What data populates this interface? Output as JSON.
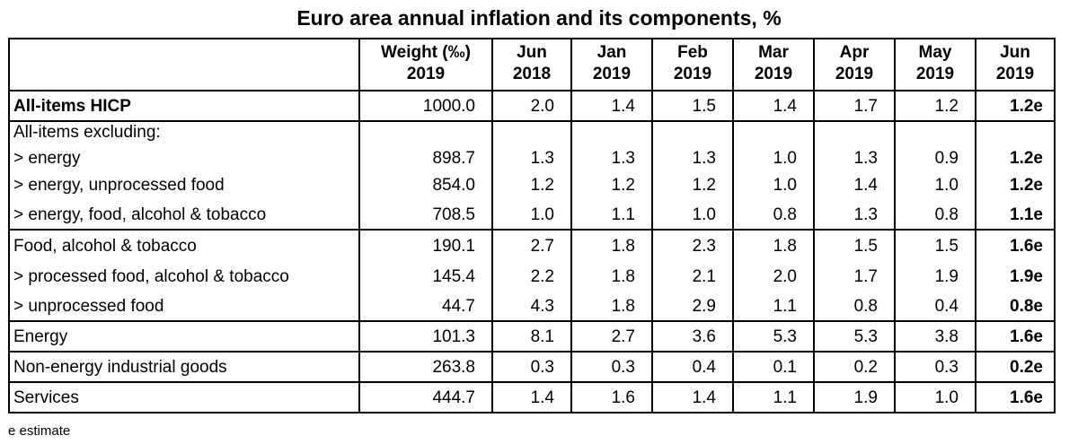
{
  "title": "Euro area annual inflation and its components, %",
  "columns": [
    {
      "line1": "",
      "line2": ""
    },
    {
      "line1": "Weight (‰)",
      "line2": "2019"
    },
    {
      "line1": "Jun",
      "line2": "2018"
    },
    {
      "line1": "Jan",
      "line2": "2019"
    },
    {
      "line1": "Feb",
      "line2": "2019"
    },
    {
      "line1": "Mar",
      "line2": "2019"
    },
    {
      "line1": "Apr",
      "line2": "2019"
    },
    {
      "line1": "May",
      "line2": "2019"
    },
    {
      "line1": "Jun",
      "line2": "2019"
    }
  ],
  "excluding_label": "All-items excluding:",
  "rows": [
    {
      "label": "All-items HICP",
      "weight": "1000.0",
      "jun2018": "2.0",
      "jan2019": "1.4",
      "feb2019": "1.5",
      "mar2019": "1.4",
      "apr2019": "1.7",
      "may2019": "1.2",
      "jun2019": "1.2e"
    },
    {
      "label": "> energy",
      "weight": "898.7",
      "jun2018": "1.3",
      "jan2019": "1.3",
      "feb2019": "1.3",
      "mar2019": "1.0",
      "apr2019": "1.3",
      "may2019": "0.9",
      "jun2019": "1.2e"
    },
    {
      "label": "> energy, unprocessed food",
      "weight": "854.0",
      "jun2018": "1.2",
      "jan2019": "1.2",
      "feb2019": "1.2",
      "mar2019": "1.0",
      "apr2019": "1.4",
      "may2019": "1.0",
      "jun2019": "1.2e"
    },
    {
      "label": "> energy, food, alcohol & tobacco",
      "weight": "708.5",
      "jun2018": "1.0",
      "jan2019": "1.1",
      "feb2019": "1.0",
      "mar2019": "0.8",
      "apr2019": "1.3",
      "may2019": "0.8",
      "jun2019": "1.1e"
    },
    {
      "label": "Food, alcohol & tobacco",
      "weight": "190.1",
      "jun2018": "2.7",
      "jan2019": "1.8",
      "feb2019": "2.3",
      "mar2019": "1.8",
      "apr2019": "1.5",
      "may2019": "1.5",
      "jun2019": "1.6e"
    },
    {
      "label": "> processed food, alcohol & tobacco",
      "weight": "145.4",
      "jun2018": "2.2",
      "jan2019": "1.8",
      "feb2019": "2.1",
      "mar2019": "2.0",
      "apr2019": "1.7",
      "may2019": "1.9",
      "jun2019": "1.9e"
    },
    {
      "label": "> unprocessed food",
      "weight": "44.7",
      "jun2018": "4.3",
      "jan2019": "1.8",
      "feb2019": "2.9",
      "mar2019": "1.1",
      "apr2019": "0.8",
      "may2019": "0.4",
      "jun2019": "0.8e"
    },
    {
      "label": "Energy",
      "weight": "101.3",
      "jun2018": "8.1",
      "jan2019": "2.7",
      "feb2019": "3.6",
      "mar2019": "5.3",
      "apr2019": "5.3",
      "may2019": "3.8",
      "jun2019": "1.6e"
    },
    {
      "label": "Non-energy industrial goods",
      "weight": "263.8",
      "jun2018": "0.3",
      "jan2019": "0.3",
      "feb2019": "0.4",
      "mar2019": "0.1",
      "apr2019": "0.2",
      "may2019": "0.3",
      "jun2019": "0.2e"
    },
    {
      "label": "Services",
      "weight": "444.7",
      "jun2018": "1.4",
      "jan2019": "1.6",
      "feb2019": "1.4",
      "mar2019": "1.1",
      "apr2019": "1.9",
      "may2019": "1.0",
      "jun2019": "1.6e"
    }
  ],
  "footnote": "e estimate",
  "chart_data": {
    "type": "table",
    "title": "Euro area annual inflation and its components, %",
    "columns": [
      "",
      "Weight (‰) 2019",
      "Jun 2018",
      "Jan 2019",
      "Feb 2019",
      "Mar 2019",
      "Apr 2019",
      "May 2019",
      "Jun 2019"
    ],
    "rows": [
      [
        "All-items HICP",
        1000.0,
        2.0,
        1.4,
        1.5,
        1.4,
        1.7,
        1.2,
        1.2
      ],
      [
        "> energy",
        898.7,
        1.3,
        1.3,
        1.3,
        1.0,
        1.3,
        0.9,
        1.2
      ],
      [
        "> energy, unprocessed food",
        854.0,
        1.2,
        1.2,
        1.2,
        1.0,
        1.4,
        1.0,
        1.2
      ],
      [
        "> energy, food, alcohol & tobacco",
        708.5,
        1.0,
        1.1,
        1.0,
        0.8,
        1.3,
        0.8,
        1.1
      ],
      [
        "Food, alcohol & tobacco",
        190.1,
        2.7,
        1.8,
        2.3,
        1.8,
        1.5,
        1.5,
        1.6
      ],
      [
        "> processed food, alcohol & tobacco",
        145.4,
        2.2,
        1.8,
        2.1,
        2.0,
        1.7,
        1.9,
        1.9
      ],
      [
        "> unprocessed food",
        44.7,
        4.3,
        1.8,
        2.9,
        1.1,
        0.8,
        0.4,
        0.8
      ],
      [
        "Energy",
        101.3,
        8.1,
        2.7,
        3.6,
        5.3,
        5.3,
        3.8,
        1.6
      ],
      [
        "Non-energy industrial goods",
        263.8,
        0.3,
        0.3,
        0.4,
        0.1,
        0.2,
        0.3,
        0.2
      ],
      [
        "Services",
        444.7,
        1.4,
        1.6,
        1.4,
        1.1,
        1.9,
        1.0,
        1.6
      ]
    ]
  }
}
